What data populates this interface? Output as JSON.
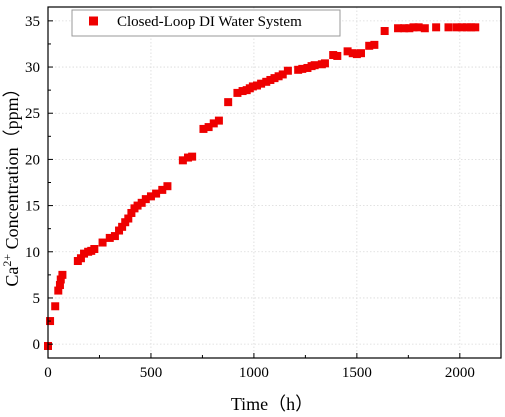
{
  "chart_data": {
    "type": "scatter",
    "xlabel": "Time（h）",
    "ylabel_base": "Ca",
    "ylabel_sup": "2+",
    "ylabel_rest": " Concentration（ppm）",
    "xlim": [
      0,
      2200
    ],
    "ylim": [
      -1.5,
      36.5
    ],
    "x_ticks": [
      0,
      500,
      1000,
      1500,
      2000
    ],
    "y_ticks": [
      0,
      5,
      10,
      15,
      20,
      25,
      30,
      35
    ],
    "x_tick_labels": [
      "0",
      "500",
      "1000",
      "1500",
      "2000"
    ],
    "y_tick_labels": [
      "0",
      "5",
      "10",
      "15",
      "20",
      "25",
      "30",
      "35"
    ],
    "grid": true,
    "legend_position": "top-left",
    "series": [
      {
        "name": "Closed-Loop DI Water System",
        "color": "#ee0000",
        "marker": "square",
        "points": [
          [
            0,
            -0.2
          ],
          [
            10,
            2.5
          ],
          [
            35,
            4.1
          ],
          [
            50,
            5.8
          ],
          [
            58,
            6.4
          ],
          [
            62,
            7.0
          ],
          [
            70,
            7.5
          ],
          [
            145,
            9.0
          ],
          [
            160,
            9.3
          ],
          [
            175,
            9.8
          ],
          [
            195,
            10.0
          ],
          [
            210,
            10.1
          ],
          [
            225,
            10.3
          ],
          [
            265,
            11.0
          ],
          [
            300,
            11.5
          ],
          [
            325,
            11.7
          ],
          [
            345,
            12.3
          ],
          [
            360,
            12.7
          ],
          [
            375,
            13.2
          ],
          [
            390,
            13.6
          ],
          [
            405,
            14.2
          ],
          [
            420,
            14.7
          ],
          [
            435,
            15.0
          ],
          [
            455,
            15.3
          ],
          [
            475,
            15.7
          ],
          [
            500,
            16.0
          ],
          [
            525,
            16.3
          ],
          [
            555,
            16.7
          ],
          [
            580,
            17.1
          ],
          [
            655,
            19.9
          ],
          [
            680,
            20.2
          ],
          [
            700,
            20.3
          ],
          [
            755,
            23.3
          ],
          [
            780,
            23.5
          ],
          [
            805,
            23.9
          ],
          [
            830,
            24.2
          ],
          [
            875,
            26.2
          ],
          [
            920,
            27.2
          ],
          [
            945,
            27.4
          ],
          [
            965,
            27.5
          ],
          [
            980,
            27.7
          ],
          [
            995,
            27.9
          ],
          [
            1015,
            28.0
          ],
          [
            1035,
            28.2
          ],
          [
            1060,
            28.4
          ],
          [
            1080,
            28.6
          ],
          [
            1100,
            28.8
          ],
          [
            1120,
            29.0
          ],
          [
            1140,
            29.2
          ],
          [
            1165,
            29.6
          ],
          [
            1215,
            29.7
          ],
          [
            1235,
            29.8
          ],
          [
            1260,
            29.9
          ],
          [
            1280,
            30.1
          ],
          [
            1295,
            30.2
          ],
          [
            1330,
            30.3
          ],
          [
            1345,
            30.4
          ],
          [
            1385,
            31.3
          ],
          [
            1405,
            31.2
          ],
          [
            1455,
            31.7
          ],
          [
            1480,
            31.5
          ],
          [
            1500,
            31.4
          ],
          [
            1520,
            31.5
          ],
          [
            1560,
            32.3
          ],
          [
            1585,
            32.4
          ],
          [
            1635,
            33.9
          ],
          [
            1700,
            34.2
          ],
          [
            1730,
            34.2
          ],
          [
            1755,
            34.2
          ],
          [
            1775,
            34.3
          ],
          [
            1800,
            34.3
          ],
          [
            1830,
            34.2
          ],
          [
            1885,
            34.3
          ],
          [
            1945,
            34.3
          ],
          [
            1985,
            34.3
          ],
          [
            2010,
            34.3
          ],
          [
            2035,
            34.3
          ],
          [
            2055,
            34.3
          ],
          [
            2075,
            34.3
          ]
        ]
      }
    ]
  }
}
